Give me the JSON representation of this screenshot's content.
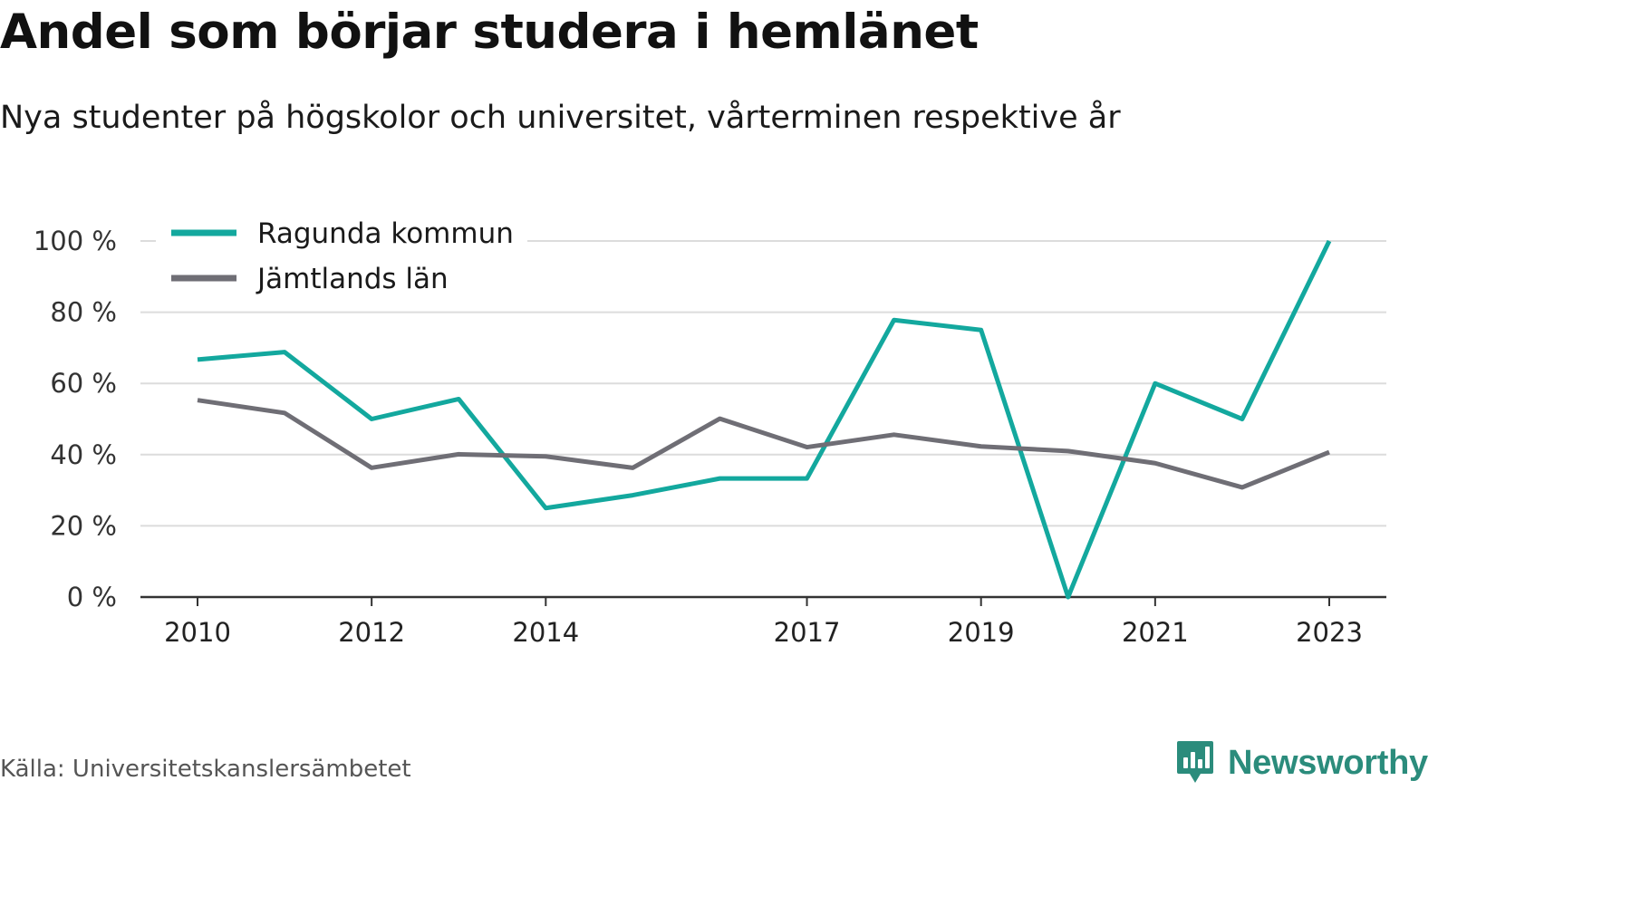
{
  "title": "Andel som börjar studera i hemlänet",
  "subtitle": "Nya studenter på högskolor och universitet, vårterminen respektive år",
  "source": "Källa: Universitetskanslersämbetet",
  "brand": "Newsworthy",
  "colors": {
    "ragunda": "#13a89e",
    "jamtland": "#6f6e75",
    "grid": "#dcdcdc",
    "axis": "#333333",
    "brand": "#2b8c7c"
  },
  "chart_data": {
    "type": "line",
    "x": [
      2010,
      2011,
      2012,
      2013,
      2014,
      2015,
      2016,
      2017,
      2018,
      2019,
      2020,
      2021,
      2022,
      2023
    ],
    "xticks": [
      "2010",
      "2012",
      "2014",
      "2017",
      "2019",
      "2021",
      "2023"
    ],
    "xtick_values": [
      2010,
      2012,
      2014,
      2017,
      2019,
      2021,
      2023
    ],
    "yticks": [
      "0 %",
      "20 %",
      "40 %",
      "60 %",
      "80 %",
      "100 %"
    ],
    "ytick_values": [
      0,
      20,
      40,
      60,
      80,
      100
    ],
    "ylim": [
      0,
      100
    ],
    "grid": true,
    "legend_position": "top-left",
    "series": [
      {
        "name": "Ragunda kommun",
        "color": "#13a89e",
        "values": [
          66.7,
          68.8,
          50,
          55.6,
          25,
          28.6,
          33.3,
          33.3,
          77.8,
          75,
          0,
          60,
          50,
          100
        ]
      },
      {
        "name": "Jämtlands län",
        "color": "#6f6e75",
        "values": [
          55.3,
          51.7,
          36.3,
          40.1,
          39.5,
          36.3,
          50.1,
          42.1,
          45.6,
          42.3,
          41,
          37.6,
          30.8,
          40.7
        ]
      }
    ]
  }
}
